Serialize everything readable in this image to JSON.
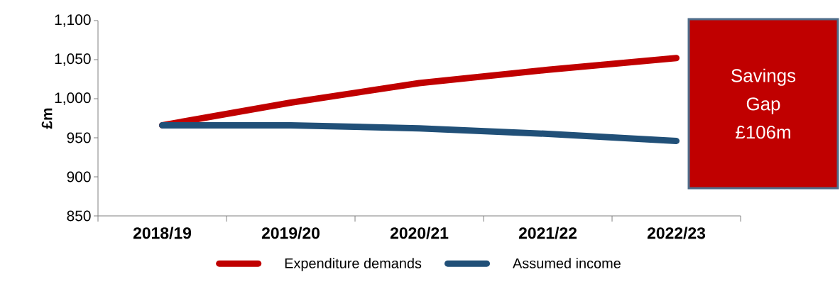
{
  "chart_data": {
    "type": "line",
    "ylabel": "£m",
    "categories": [
      "2018/19",
      "2019/20",
      "2020/21",
      "2021/22",
      "2022/23"
    ],
    "series": [
      {
        "name": "Expenditure demands",
        "color": "#c00000",
        "values": [
          966,
          995,
          1020,
          1037,
          1052
        ]
      },
      {
        "name": "Assumed income",
        "color": "#215078",
        "values": [
          966,
          966,
          962,
          955,
          946
        ]
      }
    ],
    "ylim": [
      850,
      1100
    ],
    "yticks": [
      {
        "value": 850,
        "label": "850"
      },
      {
        "value": 900,
        "label": "900"
      },
      {
        "value": 950,
        "label": "950"
      },
      {
        "value": 1000,
        "label": "1,000"
      },
      {
        "value": 1050,
        "label": "1,050"
      },
      {
        "value": 1100,
        "label": "1,100"
      }
    ],
    "grid": false,
    "legend": "bottom",
    "marker": "none",
    "line_style": "solid",
    "annotations": [
      "Savings Gap £106m"
    ]
  }
}
